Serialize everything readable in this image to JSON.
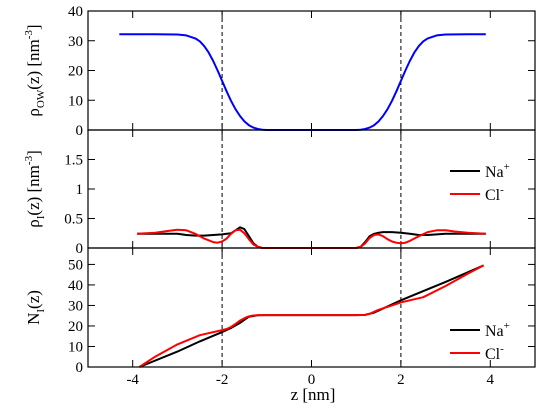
{
  "figure": {
    "xlabel": "z [nm]",
    "xticks": [
      "-4",
      "-2",
      "0",
      "2",
      "4"
    ]
  },
  "chart_data": [
    {
      "type": "line",
      "ylabel": {
        "prefix": "ρ",
        "sub": "OW",
        "mid": "(z) [nm",
        "sup": "-3",
        "suffix": "]"
      },
      "xlim": [
        -5,
        5
      ],
      "ylim": [
        0,
        40
      ],
      "yticks": [
        "0",
        "10",
        "20",
        "30",
        "40"
      ],
      "vlines": [
        -2,
        2
      ],
      "series": [
        {
          "color": "#0000ff",
          "x": [
            -4.3,
            -3.5,
            -3.0,
            -2.8,
            -2.6,
            -2.5,
            -2.4,
            -2.3,
            -2.2,
            -2.1,
            -2.0,
            -1.9,
            -1.8,
            -1.7,
            -1.6,
            -1.5,
            -1.4,
            -1.3,
            -1.2,
            -1.1,
            -1.0,
            -0.5,
            0,
            0.5,
            1.0,
            1.1,
            1.2,
            1.3,
            1.4,
            1.5,
            1.6,
            1.7,
            1.8,
            1.9,
            2.0,
            2.1,
            2.2,
            2.3,
            2.4,
            2.5,
            2.6,
            2.8,
            3.0,
            3.5,
            3.9
          ],
          "y": [
            32.2,
            32.2,
            32.1,
            31.8,
            30.8,
            29.8,
            28.2,
            26.0,
            23.2,
            20.0,
            16.5,
            13.0,
            9.8,
            7.0,
            4.7,
            2.9,
            1.6,
            0.8,
            0.35,
            0.1,
            0.0,
            0.0,
            0.0,
            0.0,
            0.0,
            0.1,
            0.35,
            0.8,
            1.6,
            2.9,
            4.7,
            7.0,
            9.8,
            13.0,
            16.5,
            20.0,
            23.2,
            26.0,
            28.2,
            29.8,
            30.8,
            31.8,
            32.1,
            32.2,
            32.2
          ]
        }
      ]
    },
    {
      "type": "line",
      "ylabel": {
        "prefix": "ρ",
        "sub": "I",
        "mid": "(z) [nm",
        "sup": "-3",
        "suffix": "]"
      },
      "xlim": [
        -5,
        5
      ],
      "ylim": [
        0,
        2
      ],
      "yticks": [
        "0",
        "0.5",
        "1",
        "1.5"
      ],
      "vlines": [
        -2,
        2
      ],
      "legend": [
        {
          "label": "Na",
          "sup": "+",
          "color": "#000000"
        },
        {
          "label": "Cl",
          "sup": "-",
          "color": "#ff0000"
        }
      ],
      "series": [
        {
          "name": "Na+",
          "color": "#000000",
          "x": [
            -3.9,
            -3.5,
            -3.0,
            -2.8,
            -2.6,
            -2.4,
            -2.2,
            -2.0,
            -1.8,
            -1.7,
            -1.6,
            -1.5,
            -1.4,
            -1.3,
            -1.2,
            -1.1,
            -1.0,
            1.0,
            1.1,
            1.2,
            1.3,
            1.4,
            1.5,
            1.6,
            1.8,
            2.0,
            2.2,
            2.4,
            2.6,
            2.8,
            3.0,
            3.5,
            3.9
          ],
          "y": [
            0.24,
            0.24,
            0.24,
            0.22,
            0.21,
            0.21,
            0.22,
            0.23,
            0.25,
            0.3,
            0.35,
            0.32,
            0.2,
            0.08,
            0.02,
            0.0,
            0.0,
            0.0,
            0.02,
            0.1,
            0.2,
            0.24,
            0.26,
            0.27,
            0.27,
            0.26,
            0.24,
            0.22,
            0.22,
            0.23,
            0.24,
            0.24,
            0.24
          ]
        },
        {
          "name": "Cl-",
          "color": "#ff0000",
          "x": [
            -3.9,
            -3.5,
            -3.2,
            -3.0,
            -2.8,
            -2.6,
            -2.4,
            -2.2,
            -2.1,
            -2.0,
            -1.9,
            -1.8,
            -1.7,
            -1.6,
            -1.5,
            -1.4,
            -1.3,
            -1.2,
            -1.1,
            -1.0,
            1.0,
            1.1,
            1.2,
            1.3,
            1.4,
            1.5,
            1.6,
            1.7,
            1.8,
            1.9,
            2.0,
            2.1,
            2.2,
            2.4,
            2.6,
            2.8,
            3.0,
            3.2,
            3.5,
            3.9
          ],
          "y": [
            0.24,
            0.26,
            0.29,
            0.31,
            0.3,
            0.24,
            0.16,
            0.1,
            0.09,
            0.11,
            0.16,
            0.24,
            0.3,
            0.31,
            0.25,
            0.15,
            0.06,
            0.02,
            0.0,
            0.0,
            0.0,
            0.02,
            0.08,
            0.17,
            0.22,
            0.23,
            0.2,
            0.15,
            0.11,
            0.09,
            0.08,
            0.09,
            0.12,
            0.2,
            0.27,
            0.3,
            0.3,
            0.28,
            0.26,
            0.24
          ]
        }
      ]
    },
    {
      "type": "line",
      "ylabel": {
        "prefix": "N",
        "sub": "I",
        "mid": "(z)",
        "sup": "",
        "suffix": ""
      },
      "xlim": [
        -5,
        5
      ],
      "ylim": [
        0,
        58
      ],
      "yticks": [
        "0",
        "10",
        "20",
        "30",
        "40",
        "50"
      ],
      "vlines": [
        -2,
        2
      ],
      "legend": [
        {
          "label": "Na",
          "sup": "+",
          "color": "#000000"
        },
        {
          "label": "Cl",
          "sup": "-",
          "color": "#ff0000"
        }
      ],
      "series": [
        {
          "name": "Na+",
          "color": "#000000",
          "x": [
            -3.85,
            -3.0,
            -2.5,
            -2.0,
            -1.8,
            -1.6,
            -1.5,
            -1.4,
            -1.2,
            -1.0,
            0,
            1.0,
            1.2,
            1.4,
            1.5,
            1.6,
            1.8,
            2.0,
            2.5,
            3.0,
            3.85
          ],
          "y": [
            0,
            7.5,
            12.5,
            17.0,
            19.0,
            21.5,
            23.0,
            24.5,
            25.2,
            25.3,
            25.3,
            25.3,
            25.4,
            26.5,
            27.5,
            28.5,
            30.5,
            32.5,
            37.0,
            41.5,
            49.5
          ]
        },
        {
          "name": "Cl-",
          "color": "#ff0000",
          "x": [
            -3.85,
            -3.5,
            -3.0,
            -2.5,
            -2.0,
            -1.9,
            -1.8,
            -1.7,
            -1.6,
            -1.5,
            -1.4,
            -1.3,
            -1.2,
            -1.0,
            0,
            1.0,
            1.2,
            1.3,
            1.4,
            1.5,
            1.6,
            1.8,
            2.0,
            2.2,
            2.5,
            3.0,
            3.5,
            3.85
          ],
          "y": [
            0,
            5.0,
            11.0,
            15.5,
            18.0,
            18.5,
            19.5,
            21.0,
            22.6,
            23.8,
            24.7,
            25.1,
            25.3,
            25.3,
            25.3,
            25.3,
            25.4,
            25.9,
            26.9,
            27.9,
            28.6,
            30.0,
            31.5,
            32.5,
            34.0,
            39.5,
            45.5,
            49.5
          ]
        }
      ]
    }
  ]
}
